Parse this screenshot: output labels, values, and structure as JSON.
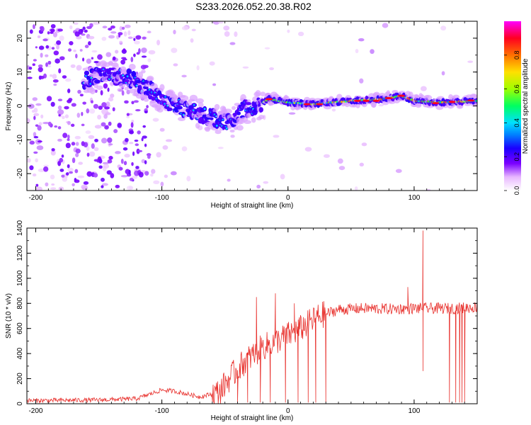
{
  "title": "S233.2026.052.20.38.R02",
  "chart_data": [
    {
      "type": "heatmap",
      "xlabel": "Height of straight line (km)",
      "ylabel": "Frequency (Hz)",
      "xlim": [
        -207,
        150
      ],
      "ylim": [
        -25,
        25
      ],
      "xticks": [
        -200,
        -100,
        0,
        100
      ],
      "xtick_labels": [
        "-200",
        "-100",
        "0",
        "100"
      ],
      "yticks": [
        -20,
        -10,
        0,
        10,
        20
      ],
      "ytick_labels": [
        "-20",
        "-10",
        "0",
        "10",
        "20"
      ],
      "ridge": [
        {
          "x": -165,
          "y": 7
        },
        {
          "x": -150,
          "y": 9
        },
        {
          "x": -140,
          "y": 9
        },
        {
          "x": -125,
          "y": 8
        },
        {
          "x": -110,
          "y": 5
        },
        {
          "x": -95,
          "y": 1
        },
        {
          "x": -80,
          "y": -1
        },
        {
          "x": -65,
          "y": -3
        },
        {
          "x": -55,
          "y": -4
        },
        {
          "x": -45,
          "y": -5
        },
        {
          "x": -35,
          "y": -1
        },
        {
          "x": -25,
          "y": 0
        },
        {
          "x": -15,
          "y": 2
        },
        {
          "x": 0,
          "y": 1
        },
        {
          "x": 20,
          "y": 0.5
        },
        {
          "x": 50,
          "y": 1.5
        },
        {
          "x": 75,
          "y": 2
        },
        {
          "x": 90,
          "y": 3
        },
        {
          "x": 100,
          "y": 1.5
        },
        {
          "x": 120,
          "y": 1
        },
        {
          "x": 150,
          "y": 1.5
        }
      ],
      "colorbar": {
        "label": "Normalized spectral amplitude",
        "range": [
          0,
          1
        ],
        "ticks": [
          0,
          0.2,
          0.4,
          0.6,
          0.8
        ],
        "tick_labels": [
          "0.0",
          "0.2",
          "0.4",
          "0.6",
          "0.8"
        ]
      }
    },
    {
      "type": "line",
      "xlabel": "Height of straight line (km)",
      "ylabel": "SNR (10 * v/v)",
      "xlim": [
        -207,
        150
      ],
      "ylim": [
        0,
        1400
      ],
      "xticks": [
        -200,
        -100,
        0,
        100
      ],
      "xtick_labels": [
        "-200",
        "-100",
        "0",
        "100"
      ],
      "yticks": [
        0,
        200,
        400,
        600,
        800,
        1000,
        1200,
        1400
      ],
      "ytick_labels": [
        "0",
        "200",
        "400",
        "600",
        "800",
        "1000",
        "1200",
        "1400"
      ],
      "series": [
        {
          "name": "SNR",
          "color": "#e8312d",
          "trend": [
            {
              "x": -207,
              "y": 25
            },
            {
              "x": -150,
              "y": 30
            },
            {
              "x": -120,
              "y": 40
            },
            {
              "x": -100,
              "y": 110
            },
            {
              "x": -90,
              "y": 100
            },
            {
              "x": -70,
              "y": 55
            },
            {
              "x": -55,
              "y": 90
            },
            {
              "x": -45,
              "y": 220
            },
            {
              "x": -35,
              "y": 330
            },
            {
              "x": -20,
              "y": 450
            },
            {
              "x": -5,
              "y": 520
            },
            {
              "x": 10,
              "y": 600
            },
            {
              "x": 25,
              "y": 700
            },
            {
              "x": 40,
              "y": 750
            },
            {
              "x": 60,
              "y": 760
            },
            {
              "x": 80,
              "y": 755
            },
            {
              "x": 100,
              "y": 760
            },
            {
              "x": 130,
              "y": 760
            },
            {
              "x": 150,
              "y": 770
            }
          ],
          "spikes": [
            {
              "x": -25,
              "y": 850
            },
            {
              "x": -10,
              "y": 880
            },
            {
              "x": 5,
              "y": 800
            },
            {
              "x": 95,
              "y": 930
            },
            {
              "x": 107,
              "y": 1380
            }
          ],
          "dips": [
            {
              "x": -40,
              "y": 10
            },
            {
              "x": -32,
              "y": 10
            },
            {
              "x": -22,
              "y": 10
            },
            {
              "x": -14,
              "y": 10
            },
            {
              "x": -2,
              "y": 10
            },
            {
              "x": 8,
              "y": 10
            },
            {
              "x": 16,
              "y": 10
            },
            {
              "x": 22,
              "y": 10
            },
            {
              "x": 30,
              "y": 10
            },
            {
              "x": 107,
              "y": 260
            },
            {
              "x": 128,
              "y": 10
            },
            {
              "x": 133,
              "y": 10
            },
            {
              "x": 136,
              "y": 10
            },
            {
              "x": 138,
              "y": 10
            },
            {
              "x": 140,
              "y": 10
            }
          ]
        }
      ]
    }
  ]
}
